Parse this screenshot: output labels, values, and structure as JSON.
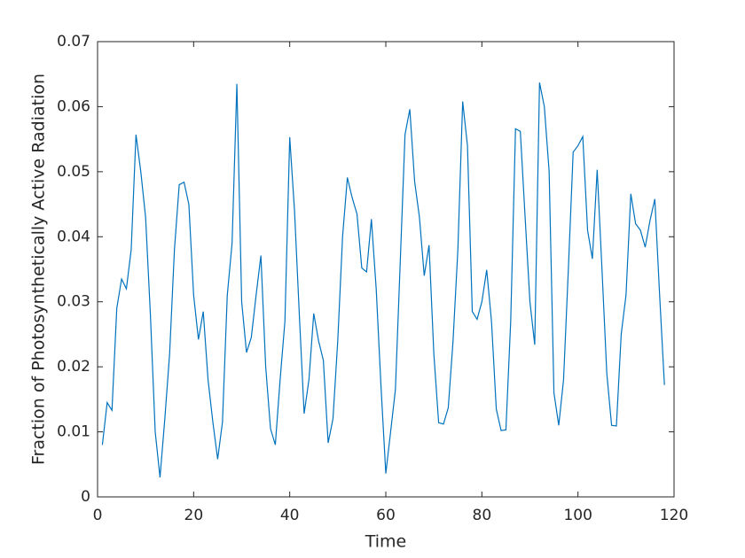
{
  "chart_data": {
    "type": "line",
    "xlabel": "Time",
    "ylabel": "Fraction of Photosynthetically Active Radiation",
    "color": "#0072bd",
    "x": [
      1,
      2,
      3,
      4,
      5,
      6,
      7,
      8,
      9,
      10,
      11,
      12,
      13,
      14,
      15,
      16,
      17,
      18,
      19,
      20,
      21,
      22,
      23,
      24,
      25,
      26,
      27,
      28,
      29,
      30,
      31,
      32,
      33,
      34,
      35,
      36,
      37,
      38,
      39,
      40,
      41,
      42,
      43,
      44,
      45,
      46,
      47,
      48,
      49,
      50,
      51,
      52,
      53,
      54,
      55,
      56,
      57,
      58,
      59,
      60,
      61,
      62,
      63,
      64,
      65,
      66,
      67,
      68,
      69,
      70,
      71,
      72,
      73,
      74,
      75,
      76,
      77,
      78,
      79,
      80,
      81,
      82,
      83,
      84,
      85,
      86,
      87,
      88,
      89,
      90,
      91,
      92,
      93,
      94,
      95,
      96,
      97,
      98,
      99,
      100,
      101,
      102,
      103,
      104,
      105,
      106,
      107,
      108,
      109,
      110,
      111,
      112,
      113,
      114,
      115,
      116,
      117,
      118
    ],
    "values": [
      0.008,
      0.0145,
      0.0133,
      0.029,
      0.0335,
      0.032,
      0.038,
      0.0557,
      0.05,
      0.043,
      0.028,
      0.01,
      0.003,
      0.012,
      0.022,
      0.038,
      0.048,
      0.0484,
      0.045,
      0.031,
      0.0242,
      0.0285,
      0.018,
      0.0115,
      0.0058,
      0.0115,
      0.031,
      0.039,
      0.0635,
      0.03,
      0.0222,
      0.0245,
      0.031,
      0.0371,
      0.02,
      0.0105,
      0.008,
      0.018,
      0.027,
      0.0553,
      0.044,
      0.028,
      0.0128,
      0.018,
      0.0282,
      0.024,
      0.021,
      0.0083,
      0.012,
      0.024,
      0.04,
      0.0491,
      0.046,
      0.0435,
      0.0352,
      0.0346,
      0.0427,
      0.032,
      0.017,
      0.0036,
      0.01,
      0.0165,
      0.036,
      0.0557,
      0.0596,
      0.0485,
      0.043,
      0.034,
      0.0387,
      0.022,
      0.0114,
      0.0112,
      0.0137,
      0.024,
      0.038,
      0.0608,
      0.054,
      0.0285,
      0.0273,
      0.03,
      0.0349,
      0.027,
      0.0135,
      0.0102,
      0.0103,
      0.027,
      0.0566,
      0.0562,
      0.043,
      0.03,
      0.0234,
      0.0637,
      0.06,
      0.05,
      0.016,
      0.011,
      0.018,
      0.035,
      0.053,
      0.054,
      0.0554,
      0.041,
      0.0366,
      0.0503,
      0.035,
      0.019,
      0.011,
      0.0109,
      0.025,
      0.031,
      0.0466,
      0.042,
      0.041,
      0.0384,
      0.0425,
      0.0458,
      0.031,
      0.0172
    ],
    "xlim": [
      0,
      120
    ],
    "xticks": [
      0,
      20,
      40,
      60,
      80,
      100,
      120
    ],
    "ylim": [
      0,
      0.07
    ],
    "yticks": [
      0,
      0.01,
      0.02,
      0.03,
      0.04,
      0.05,
      0.06,
      0.07
    ]
  }
}
